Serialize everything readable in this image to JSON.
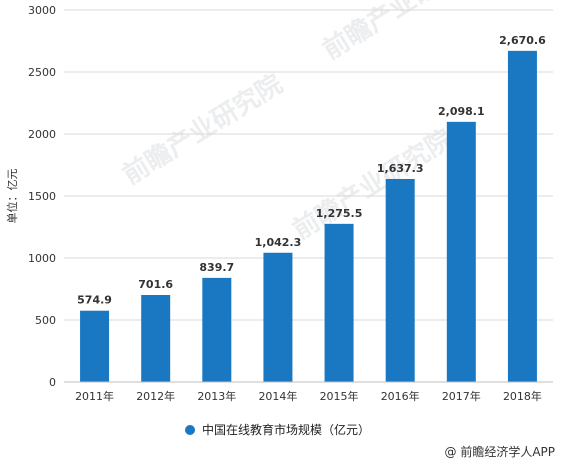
{
  "chart_data": {
    "type": "bar",
    "categories": [
      "2011年",
      "2012年",
      "2013年",
      "2014年",
      "2015年",
      "2016年",
      "2017年",
      "2018年"
    ],
    "series": [
      {
        "name": "中国在线教育市场规模（亿元）",
        "values": [
          574.9,
          701.6,
          839.7,
          1042.3,
          1275.5,
          1637.3,
          2098.1,
          2670.6
        ],
        "labels": [
          "574.9",
          "701.6",
          "839.7",
          "1,042.3",
          "1,275.5",
          "1,637.3",
          "2,098.1",
          "2,670.6"
        ],
        "color": "#1a78c2"
      }
    ],
    "ylabel": "单位：亿元",
    "ylim": [
      0,
      3000
    ],
    "yticks": [
      0,
      500,
      1000,
      1500,
      2000,
      2500,
      3000
    ],
    "grid": true,
    "legend_position": "bottom"
  },
  "source": "@ 前瞻经济学人APP",
  "watermark": "前瞻产业研究院"
}
